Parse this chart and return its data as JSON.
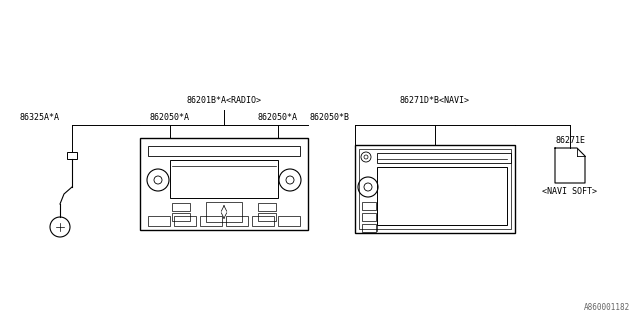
{
  "bg_color": "#ffffff",
  "line_color": "#000000",
  "text_color": "#000000",
  "font_size": 6.0,
  "fig_width": 6.4,
  "fig_height": 3.2,
  "watermark": "A860001182",
  "labels": {
    "radio_unit": "86201B*A<RADIO>",
    "navi_unit": "86271D*B<NAVI>",
    "left_knob_label": "862050*A",
    "right_knob_label": "862050*A",
    "antenna_label": "86325A*A",
    "navi_connector": "862050*B",
    "navi_soft_label": "86271E",
    "navi_soft_text": "<NAVI SOFT>"
  }
}
